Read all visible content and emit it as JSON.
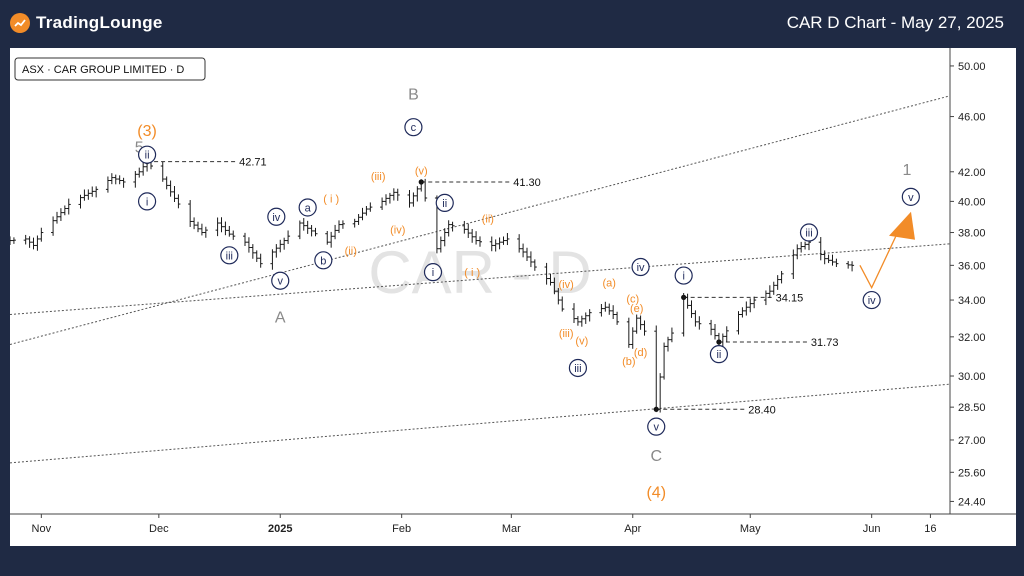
{
  "header": {
    "brand": "TradingLounge",
    "title": "CAR D Chart - May 27, 2025"
  },
  "chart_data": {
    "type": "candlestick",
    "symbol_label": "ASX · CAR GROUP LIMITED · D",
    "watermark": "CAR - D",
    "price_axis": {
      "ticks": [
        50.0,
        46.0,
        42.0,
        40.0,
        38.0,
        36.0,
        34.0,
        32.0,
        30.0,
        28.5,
        27.0,
        25.6,
        24.4
      ],
      "tick_labels": [
        "50.00",
        "46.00",
        "42.00",
        "40.00",
        "38.00",
        "36.00",
        "34.00",
        "32.00",
        "30.00",
        "28.50",
        "27.00",
        "25.60",
        "24.40"
      ],
      "scale": "log",
      "ylim": [
        23.9,
        51.5
      ]
    },
    "date_axis": {
      "labels": [
        {
          "date": "2024-11-01",
          "text": "Nov"
        },
        {
          "date": "2024-12-01",
          "text": "Dec"
        },
        {
          "date": "2025-01-01",
          "text": "2025"
        },
        {
          "date": "2025-02-01",
          "text": "Feb"
        },
        {
          "date": "2025-03-01",
          "text": "Mar"
        },
        {
          "date": "2025-04-01",
          "text": "Apr"
        },
        {
          "date": "2025-05-01",
          "text": "May"
        },
        {
          "date": "2025-06-01",
          "text": "Jun"
        },
        {
          "date": "2025-06-16",
          "text": "16"
        }
      ],
      "xlim": [
        "2024-10-24",
        "2025-06-21"
      ]
    },
    "price_path": [
      [
        "2024-10-24",
        37.5
      ],
      [
        "2024-10-28",
        37.6
      ],
      [
        "2024-10-30",
        37.2
      ],
      [
        "2024-11-01",
        38.0
      ],
      [
        "2024-11-05",
        39.0
      ],
      [
        "2024-11-08",
        39.8
      ],
      [
        "2024-11-12",
        40.4
      ],
      [
        "2024-11-15",
        40.8
      ],
      [
        "2024-11-19",
        41.6
      ],
      [
        "2024-11-22",
        41.3
      ],
      [
        "2024-11-26",
        42.0
      ],
      [
        "2024-11-28",
        42.7
      ],
      [
        "2024-12-02",
        41.5
      ],
      [
        "2024-12-05",
        40.2
      ],
      [
        "2024-12-09",
        38.7
      ],
      [
        "2024-12-12",
        38.0
      ],
      [
        "2024-12-16",
        38.6
      ],
      [
        "2024-12-19",
        37.9
      ],
      [
        "2024-12-23",
        37.4
      ],
      [
        "2024-12-27",
        36.1
      ],
      [
        "2025-01-02",
        37.5
      ],
      [
        "2025-01-06",
        38.6
      ],
      [
        "2025-01-09",
        38.1
      ],
      [
        "2025-01-13",
        37.4
      ],
      [
        "2025-01-16",
        38.5
      ],
      [
        "2025-01-20",
        38.7
      ],
      [
        "2025-01-23",
        39.5
      ],
      [
        "2025-01-27",
        40.0
      ],
      [
        "2025-01-30",
        40.6
      ],
      [
        "2025-02-03",
        39.9
      ],
      [
        "2025-02-06",
        41.3
      ],
      [
        "2025-02-10",
        37.0
      ],
      [
        "2025-02-13",
        38.5
      ],
      [
        "2025-02-17",
        38.2
      ],
      [
        "2025-02-20",
        37.5
      ],
      [
        "2025-02-24",
        37.2
      ],
      [
        "2025-02-28",
        37.6
      ],
      [
        "2025-03-04",
        36.8
      ],
      [
        "2025-03-07",
        35.9
      ],
      [
        "2025-03-11",
        35.0
      ],
      [
        "2025-03-14",
        33.5
      ],
      [
        "2025-03-18",
        32.8
      ],
      [
        "2025-03-21",
        33.3
      ],
      [
        "2025-03-25",
        33.6
      ],
      [
        "2025-03-27",
        33.2
      ],
      [
        "2025-03-31",
        31.6
      ],
      [
        "2025-04-02",
        33.0
      ],
      [
        "2025-04-04",
        32.3
      ],
      [
        "2025-04-07",
        28.4
      ],
      [
        "2025-04-09",
        31.5
      ],
      [
        "2025-04-11",
        32.2
      ],
      [
        "2025-04-14",
        34.15
      ],
      [
        "2025-04-17",
        32.8
      ],
      [
        "2025-04-21",
        32.4
      ],
      [
        "2025-04-23",
        31.73
      ],
      [
        "2025-04-28",
        33.2
      ],
      [
        "2025-05-02",
        34.0
      ],
      [
        "2025-05-06",
        34.5
      ],
      [
        "2025-05-09",
        35.5
      ],
      [
        "2025-05-13",
        37.0
      ],
      [
        "2025-05-16",
        37.4
      ],
      [
        "2025-05-20",
        36.4
      ],
      [
        "2025-05-23",
        36.1
      ],
      [
        "2025-05-27",
        36.0
      ]
    ],
    "key_levels": [
      {
        "date": "2024-11-28",
        "price": 42.71,
        "label": "42.71"
      },
      {
        "date": "2025-02-06",
        "price": 41.3,
        "label": "41.30"
      },
      {
        "date": "2025-04-14",
        "price": 34.15,
        "label": "34.15"
      },
      {
        "date": "2025-04-23",
        "price": 31.73,
        "label": "31.73"
      },
      {
        "date": "2025-04-07",
        "price": 28.4,
        "label": "28.40"
      }
    ],
    "channel_lines": [
      {
        "from": [
          "2024-10-24",
          31.6
        ],
        "to": [
          "2025-06-21",
          47.6
        ]
      },
      {
        "from": [
          "2024-10-24",
          33.2
        ],
        "to": [
          "2025-06-21",
          37.3
        ]
      },
      {
        "from": [
          "2024-10-24",
          26.0
        ],
        "to": [
          "2025-06-21",
          29.6
        ]
      }
    ],
    "projection": [
      [
        "2025-05-29",
        36.0
      ],
      [
        "2025-06-01",
        34.7
      ],
      [
        "2025-06-08",
        38.2
      ]
    ],
    "wave_labels": [
      {
        "text": "(3)",
        "date": "2024-11-28",
        "price": 45.0,
        "color": "orange"
      },
      {
        "text": "5",
        "date": "2024-11-26",
        "price": 43.8,
        "color": "gray"
      },
      {
        "text": "ii",
        "date": "2024-11-28",
        "price": 43.2,
        "color": "navy",
        "circle": true
      },
      {
        "text": "i",
        "date": "2024-11-28",
        "price": 40.0,
        "color": "navy",
        "circle": true
      },
      {
        "text": "iii",
        "date": "2024-12-19",
        "price": 36.6,
        "color": "navy",
        "circle": true
      },
      {
        "text": "iv",
        "date": "2024-12-31",
        "price": 39.0,
        "color": "navy",
        "circle": true
      },
      {
        "text": "v",
        "date": "2025-01-01",
        "price": 35.1,
        "color": "navy",
        "circle": true
      },
      {
        "text": "A",
        "date": "2025-01-01",
        "price": 33.1,
        "color": "gray"
      },
      {
        "text": "a",
        "date": "2025-01-08",
        "price": 39.6,
        "color": "navy",
        "circle": true
      },
      {
        "text": "b",
        "date": "2025-01-12",
        "price": 36.3,
        "color": "navy",
        "circle": true
      },
      {
        "text": "( i )",
        "date": "2025-01-14",
        "price": 40.2,
        "color": "orange"
      },
      {
        "text": "(ii)",
        "date": "2025-01-19",
        "price": 36.9,
        "color": "orange"
      },
      {
        "text": "(iii)",
        "date": "2025-01-26",
        "price": 41.7,
        "color": "orange"
      },
      {
        "text": "(iv)",
        "date": "2025-01-31",
        "price": 38.2,
        "color": "orange"
      },
      {
        "text": "(v)",
        "date": "2025-02-06",
        "price": 42.1,
        "color": "orange"
      },
      {
        "text": "B",
        "date": "2025-02-04",
        "price": 47.8,
        "color": "gray"
      },
      {
        "text": "c",
        "date": "2025-02-04",
        "price": 45.2,
        "color": "navy",
        "circle": true
      },
      {
        "text": "ii",
        "date": "2025-02-12",
        "price": 39.9,
        "color": "navy",
        "circle": true
      },
      {
        "text": "i",
        "date": "2025-02-09",
        "price": 35.6,
        "color": "navy",
        "circle": true
      },
      {
        "text": "(ii)",
        "date": "2025-02-23",
        "price": 38.9,
        "color": "orange"
      },
      {
        "text": "( i )",
        "date": "2025-02-19",
        "price": 35.6,
        "color": "orange"
      },
      {
        "text": "(iv)",
        "date": "2025-03-15",
        "price": 34.9,
        "color": "orange"
      },
      {
        "text": "(iii)",
        "date": "2025-03-15",
        "price": 32.2,
        "color": "orange"
      },
      {
        "text": "(v)",
        "date": "2025-03-19",
        "price": 31.8,
        "color": "orange"
      },
      {
        "text": "iii",
        "date": "2025-03-18",
        "price": 30.4,
        "color": "navy",
        "circle": true
      },
      {
        "text": "(a)",
        "date": "2025-03-26",
        "price": 35.0,
        "color": "orange"
      },
      {
        "text": "(c)",
        "date": "2025-04-01",
        "price": 34.1,
        "color": "orange"
      },
      {
        "text": "(e)",
        "date": "2025-04-02",
        "price": 33.55,
        "color": "orange"
      },
      {
        "text": "(b)",
        "date": "2025-03-31",
        "price": 30.75,
        "color": "orange"
      },
      {
        "text": "(d)",
        "date": "2025-04-03",
        "price": 31.2,
        "color": "orange"
      },
      {
        "text": "iv",
        "date": "2025-04-03",
        "price": 35.9,
        "color": "navy",
        "circle": true
      },
      {
        "text": "i",
        "date": "2025-04-14",
        "price": 35.4,
        "color": "navy",
        "circle": true
      },
      {
        "text": "ii",
        "date": "2025-04-23",
        "price": 31.1,
        "color": "navy",
        "circle": true
      },
      {
        "text": "v",
        "date": "2025-04-07",
        "price": 27.6,
        "color": "navy",
        "circle": true
      },
      {
        "text": "C",
        "date": "2025-04-07",
        "price": 26.35,
        "color": "gray"
      },
      {
        "text": "(4)",
        "date": "2025-04-07",
        "price": 24.8,
        "color": "orange"
      },
      {
        "text": "iii",
        "date": "2025-05-16",
        "price": 38.0,
        "color": "navy",
        "circle": true
      },
      {
        "text": "iv",
        "date": "2025-06-01",
        "price": 34.0,
        "color": "navy",
        "circle": true
      },
      {
        "text": "v",
        "date": "2025-06-11",
        "price": 40.3,
        "color": "navy",
        "circle": true
      },
      {
        "text": "1",
        "date": "2025-06-10",
        "price": 42.2,
        "color": "gray"
      }
    ],
    "target_marker": {
      "date": "2025-06-09",
      "price": 38.3
    },
    "colors": {
      "orange": "#f28c28",
      "navy": "#1f2a5a",
      "gray": "#8a8a8a",
      "candle": "#1a1a1a",
      "channel": "#555555",
      "watermark": "#e3e3e3"
    }
  }
}
